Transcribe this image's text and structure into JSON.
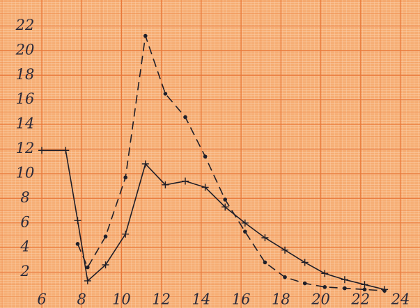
{
  "chart_data": {
    "type": "line",
    "x": [
      6,
      7.2,
      7.8,
      8.3,
      9.2,
      10.2,
      11.2,
      12.2,
      13.2,
      14.2,
      15.2,
      16.2,
      17.2,
      18.2,
      19.2,
      20.2,
      21.2,
      22.2,
      23.2
    ],
    "series": [
      {
        "color": "#1e1e28",
        "linestyle": "solid",
        "marker": "plus",
        "values": [
          11.9,
          11.9,
          6.2,
          1.3,
          2.6,
          5.1,
          10.8,
          9.1,
          9.4,
          8.9,
          7.3,
          6.0,
          4.8,
          3.8,
          2.8,
          1.9,
          1.4,
          1.0,
          0.6
        ]
      },
      {
        "color": "#1e1e28",
        "linestyle": "dashed",
        "marker": "dot",
        "values": [
          null,
          null,
          4.3,
          2.4,
          4.9,
          9.7,
          21.2,
          16.5,
          14.6,
          11.4,
          7.9,
          5.3,
          2.8,
          1.6,
          1.1,
          0.8,
          0.7,
          0.6,
          0.5
        ]
      }
    ],
    "xlim": [
      6,
      24
    ],
    "ylim": [
      0,
      24
    ],
    "xticks": [
      6,
      8,
      10,
      12,
      14,
      16,
      18,
      20,
      22,
      24
    ],
    "yticks": [
      2,
      4,
      6,
      8,
      10,
      12,
      14,
      16,
      18,
      20,
      22
    ],
    "grid": true
  }
}
